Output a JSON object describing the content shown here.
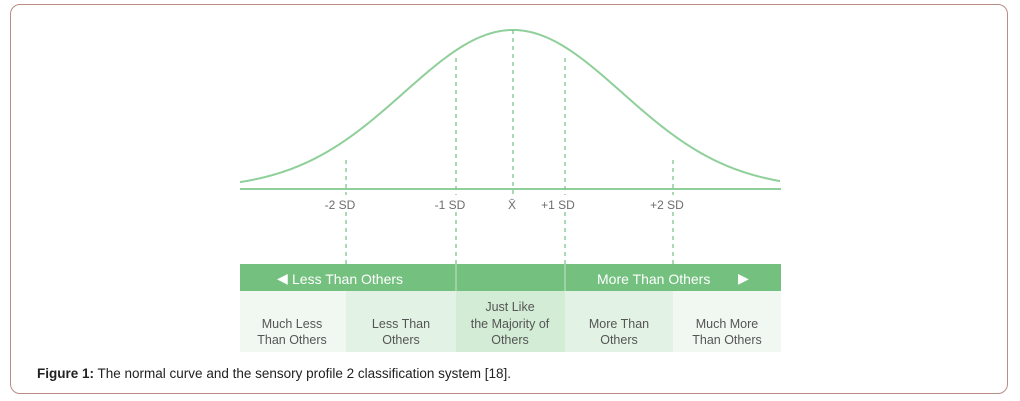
{
  "figure": {
    "axis_ticks": [
      "-2 SD",
      "-1 SD",
      "X̄",
      "+1 SD",
      "+2 SD"
    ],
    "band": {
      "left_label": "Less Than Others",
      "right_label": "More Than Others",
      "left_arrow": "◀",
      "right_arrow": "▶"
    },
    "categories": [
      {
        "line1": "Much Less",
        "line2": "Than Others",
        "line3": ""
      },
      {
        "line1": "Less Than",
        "line2": "Others",
        "line3": ""
      },
      {
        "line1": "Just Like",
        "line2": "the Majority of",
        "line3": "Others"
      },
      {
        "line1": "More Than",
        "line2": "Others",
        "line3": ""
      },
      {
        "line1": "Much More",
        "line2": "Than Others",
        "line3": ""
      }
    ],
    "colors": {
      "curve": "#8fcf9a",
      "dash": "#7fc48c",
      "band": "#73c07f",
      "band_dark": "#5fb16c",
      "cell_light": "#eef7ef",
      "cell_mid": "#d9efdc"
    }
  },
  "caption": {
    "label": "Figure 1:",
    "text": " The normal curve and the sensory profile 2 classification system [18]."
  }
}
